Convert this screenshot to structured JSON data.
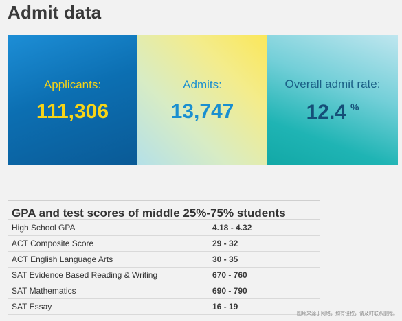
{
  "page": {
    "title": "Admit data"
  },
  "stats": {
    "applicants": {
      "label": "Applicants:",
      "value": "111,306",
      "color": "#f7d417"
    },
    "admits": {
      "label": "Admits:",
      "value": "13,747",
      "color": "#1a8fd0"
    },
    "admit_rate": {
      "label": "Overall admit rate:",
      "value": "12.4",
      "unit": "%",
      "color": "#154f78"
    }
  },
  "scores": {
    "title": "GPA and test scores of middle 25%-75% students",
    "rows": [
      {
        "metric": "High School GPA",
        "range": "4.18 - 4.32"
      },
      {
        "metric": "ACT Composite Score",
        "range": "29 - 32"
      },
      {
        "metric": "ACT English Language Arts",
        "range": "30 - 35"
      },
      {
        "metric": "SAT Evidence Based Reading & Writing",
        "range": "670 - 760"
      },
      {
        "metric": "SAT Mathematics",
        "range": "690 - 790"
      },
      {
        "metric": "SAT Essay",
        "range": "16 - 19"
      }
    ]
  },
  "watermark": "图片来源于网络，如有侵权，请及时联系删除。"
}
